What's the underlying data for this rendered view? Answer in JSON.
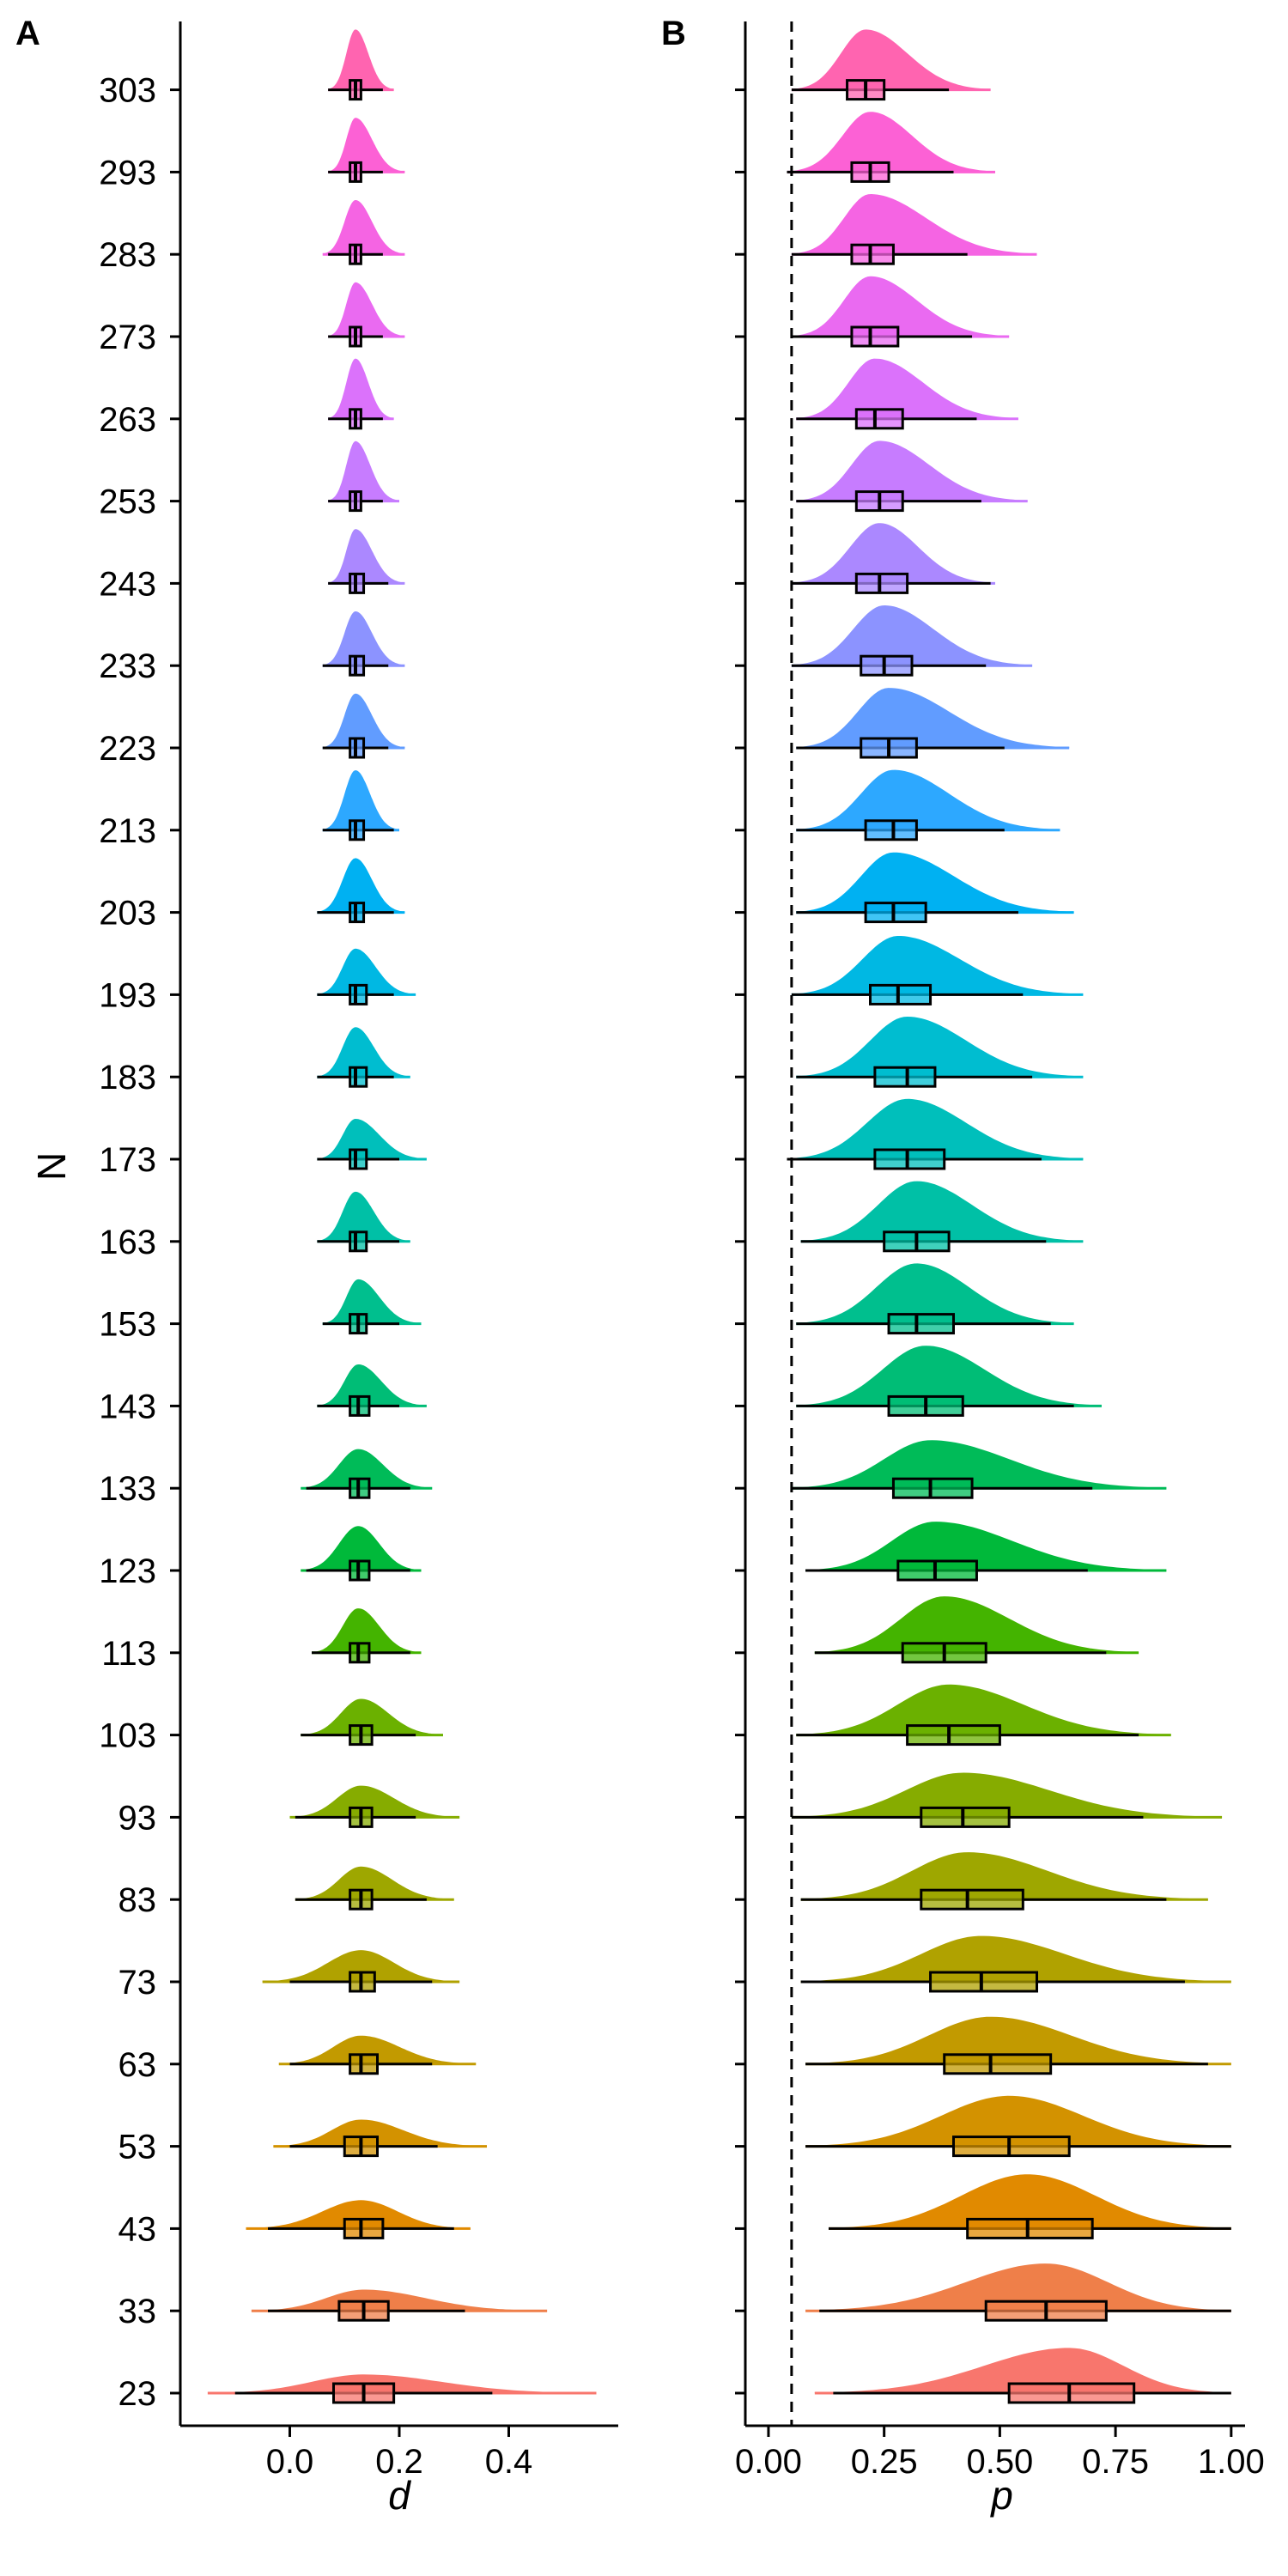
{
  "figure": {
    "y_title": "N",
    "y_ticks": [
      "23",
      "33",
      "43",
      "53",
      "63",
      "73",
      "83",
      "93",
      "103",
      "113",
      "123",
      "133",
      "143",
      "153",
      "163",
      "173",
      "183",
      "193",
      "203",
      "213",
      "223",
      "233",
      "243",
      "253",
      "263",
      "273",
      "283",
      "293",
      "303"
    ]
  },
  "chart_data": [
    {
      "panel": "A",
      "type": "raincloud",
      "xlabel": "d",
      "ylabel": "N",
      "xlim": [
        -0.2,
        0.6
      ],
      "x_ticks": [
        "0.0",
        "0.2",
        "0.4"
      ],
      "reference_line": null,
      "grid": false,
      "legend": "none",
      "series": [
        {
          "n": 23,
          "q1": 0.08,
          "median": 0.135,
          "q3": 0.19,
          "whisker_low": -0.1,
          "whisker_high": 0.37,
          "min": -0.15,
          "max": 0.56,
          "color": "#F8766D"
        },
        {
          "n": 33,
          "q1": 0.09,
          "median": 0.135,
          "q3": 0.18,
          "whisker_low": -0.04,
          "whisker_high": 0.32,
          "min": -0.07,
          "max": 0.47,
          "color": "#EF7F49"
        },
        {
          "n": 43,
          "q1": 0.1,
          "median": 0.13,
          "q3": 0.17,
          "whisker_low": -0.04,
          "whisker_high": 0.3,
          "min": -0.08,
          "max": 0.33,
          "color": "#E18A00"
        },
        {
          "n": 53,
          "q1": 0.1,
          "median": 0.13,
          "q3": 0.16,
          "whisker_low": 0.0,
          "whisker_high": 0.27,
          "min": -0.03,
          "max": 0.36,
          "color": "#D39200"
        },
        {
          "n": 63,
          "q1": 0.11,
          "median": 0.13,
          "q3": 0.16,
          "whisker_low": 0.0,
          "whisker_high": 0.26,
          "min": -0.02,
          "max": 0.34,
          "color": "#C29A00"
        },
        {
          "n": 73,
          "q1": 0.11,
          "median": 0.13,
          "q3": 0.155,
          "whisker_low": 0.0,
          "whisker_high": 0.26,
          "min": -0.05,
          "max": 0.31,
          "color": "#B0A200"
        },
        {
          "n": 83,
          "q1": 0.11,
          "median": 0.13,
          "q3": 0.15,
          "whisker_low": 0.01,
          "whisker_high": 0.25,
          "min": 0.01,
          "max": 0.3,
          "color": "#9EA700"
        },
        {
          "n": 93,
          "q1": 0.11,
          "median": 0.13,
          "q3": 0.15,
          "whisker_low": 0.01,
          "whisker_high": 0.23,
          "min": 0.0,
          "max": 0.31,
          "color": "#86AC00"
        },
        {
          "n": 103,
          "q1": 0.11,
          "median": 0.13,
          "q3": 0.15,
          "whisker_low": 0.02,
          "whisker_high": 0.23,
          "min": 0.02,
          "max": 0.28,
          "color": "#6BB100"
        },
        {
          "n": 113,
          "q1": 0.11,
          "median": 0.125,
          "q3": 0.145,
          "whisker_low": 0.04,
          "whisker_high": 0.22,
          "min": 0.04,
          "max": 0.24,
          "color": "#44B400"
        },
        {
          "n": 123,
          "q1": 0.11,
          "median": 0.125,
          "q3": 0.145,
          "whisker_low": 0.03,
          "whisker_high": 0.22,
          "min": 0.02,
          "max": 0.24,
          "color": "#00B93A"
        },
        {
          "n": 133,
          "q1": 0.11,
          "median": 0.125,
          "q3": 0.145,
          "whisker_low": 0.03,
          "whisker_high": 0.22,
          "min": 0.02,
          "max": 0.26,
          "color": "#00BB58"
        },
        {
          "n": 143,
          "q1": 0.11,
          "median": 0.125,
          "q3": 0.145,
          "whisker_low": 0.05,
          "whisker_high": 0.2,
          "min": 0.05,
          "max": 0.25,
          "color": "#00BD76"
        },
        {
          "n": 153,
          "q1": 0.11,
          "median": 0.125,
          "q3": 0.14,
          "whisker_low": 0.06,
          "whisker_high": 0.2,
          "min": 0.06,
          "max": 0.24,
          "color": "#00BF8E"
        },
        {
          "n": 163,
          "q1": 0.11,
          "median": 0.12,
          "q3": 0.14,
          "whisker_low": 0.05,
          "whisker_high": 0.2,
          "min": 0.05,
          "max": 0.22,
          "color": "#00C0A6"
        },
        {
          "n": 173,
          "q1": 0.11,
          "median": 0.12,
          "q3": 0.14,
          "whisker_low": 0.05,
          "whisker_high": 0.2,
          "min": 0.05,
          "max": 0.25,
          "color": "#00BFBB"
        },
        {
          "n": 183,
          "q1": 0.11,
          "median": 0.12,
          "q3": 0.14,
          "whisker_low": 0.05,
          "whisker_high": 0.19,
          "min": 0.05,
          "max": 0.22,
          "color": "#00BDD0"
        },
        {
          "n": 193,
          "q1": 0.11,
          "median": 0.12,
          "q3": 0.14,
          "whisker_low": 0.05,
          "whisker_high": 0.19,
          "min": 0.05,
          "max": 0.23,
          "color": "#00B8E3"
        },
        {
          "n": 203,
          "q1": 0.11,
          "median": 0.12,
          "q3": 0.135,
          "whisker_low": 0.05,
          "whisker_high": 0.19,
          "min": 0.05,
          "max": 0.21,
          "color": "#00B1F2"
        },
        {
          "n": 213,
          "q1": 0.11,
          "median": 0.12,
          "q3": 0.135,
          "whisker_low": 0.06,
          "whisker_high": 0.19,
          "min": 0.06,
          "max": 0.2,
          "color": "#2DA8FF"
        },
        {
          "n": 223,
          "q1": 0.11,
          "median": 0.12,
          "q3": 0.135,
          "whisker_low": 0.06,
          "whisker_high": 0.18,
          "min": 0.06,
          "max": 0.21,
          "color": "#619CFF"
        },
        {
          "n": 233,
          "q1": 0.11,
          "median": 0.12,
          "q3": 0.135,
          "whisker_low": 0.06,
          "whisker_high": 0.18,
          "min": 0.06,
          "max": 0.21,
          "color": "#8C93FF"
        },
        {
          "n": 243,
          "q1": 0.11,
          "median": 0.12,
          "q3": 0.135,
          "whisker_low": 0.07,
          "whisker_high": 0.18,
          "min": 0.07,
          "max": 0.21,
          "color": "#AB88FF"
        },
        {
          "n": 253,
          "q1": 0.11,
          "median": 0.12,
          "q3": 0.13,
          "whisker_low": 0.07,
          "whisker_high": 0.17,
          "min": 0.07,
          "max": 0.2,
          "color": "#C77CFF"
        },
        {
          "n": 263,
          "q1": 0.11,
          "median": 0.12,
          "q3": 0.13,
          "whisker_low": 0.07,
          "whisker_high": 0.17,
          "min": 0.07,
          "max": 0.19,
          "color": "#DB72FB"
        },
        {
          "n": 273,
          "q1": 0.11,
          "median": 0.12,
          "q3": 0.13,
          "whisker_low": 0.07,
          "whisker_high": 0.17,
          "min": 0.07,
          "max": 0.21,
          "color": "#EA6AF1"
        },
        {
          "n": 283,
          "q1": 0.11,
          "median": 0.12,
          "q3": 0.13,
          "whisker_low": 0.07,
          "whisker_high": 0.17,
          "min": 0.06,
          "max": 0.21,
          "color": "#F564E3"
        },
        {
          "n": 293,
          "q1": 0.11,
          "median": 0.12,
          "q3": 0.13,
          "whisker_low": 0.07,
          "whisker_high": 0.17,
          "min": 0.07,
          "max": 0.21,
          "color": "#FC61D5"
        },
        {
          "n": 303,
          "q1": 0.11,
          "median": 0.12,
          "q3": 0.13,
          "whisker_low": 0.07,
          "whisker_high": 0.17,
          "min": 0.07,
          "max": 0.19,
          "color": "#FF64B0"
        }
      ]
    },
    {
      "panel": "B",
      "type": "raincloud",
      "xlabel": "p",
      "ylabel": "N",
      "xlim": [
        -0.05,
        1.03
      ],
      "x_ticks": [
        "0.00",
        "0.25",
        "0.50",
        "0.75",
        "1.00"
      ],
      "reference_line": 0.05,
      "grid": false,
      "legend": "none",
      "series": [
        {
          "n": 23,
          "q1": 0.52,
          "median": 0.65,
          "q3": 0.79,
          "whisker_low": 0.14,
          "whisker_high": 1.0,
          "min": 0.1,
          "max": 1.0,
          "color": "#F8766D"
        },
        {
          "n": 33,
          "q1": 0.47,
          "median": 0.6,
          "q3": 0.73,
          "whisker_low": 0.11,
          "whisker_high": 1.0,
          "min": 0.08,
          "max": 1.0,
          "color": "#EF7F49"
        },
        {
          "n": 43,
          "q1": 0.43,
          "median": 0.56,
          "q3": 0.7,
          "whisker_low": 0.13,
          "whisker_high": 1.0,
          "min": 0.13,
          "max": 1.0,
          "color": "#E18A00"
        },
        {
          "n": 53,
          "q1": 0.4,
          "median": 0.52,
          "q3": 0.65,
          "whisker_low": 0.08,
          "whisker_high": 1.0,
          "min": 0.08,
          "max": 1.0,
          "color": "#D39200"
        },
        {
          "n": 63,
          "q1": 0.38,
          "median": 0.48,
          "q3": 0.61,
          "whisker_low": 0.08,
          "whisker_high": 0.95,
          "min": 0.08,
          "max": 1.0,
          "color": "#C29A00"
        },
        {
          "n": 73,
          "q1": 0.35,
          "median": 0.46,
          "q3": 0.58,
          "whisker_low": 0.07,
          "whisker_high": 0.9,
          "min": 0.07,
          "max": 1.0,
          "color": "#B0A200"
        },
        {
          "n": 83,
          "q1": 0.33,
          "median": 0.43,
          "q3": 0.55,
          "whisker_low": 0.07,
          "whisker_high": 0.86,
          "min": 0.07,
          "max": 0.95,
          "color": "#9EA700"
        },
        {
          "n": 93,
          "q1": 0.33,
          "median": 0.42,
          "q3": 0.52,
          "whisker_low": 0.05,
          "whisker_high": 0.81,
          "min": 0.05,
          "max": 0.98,
          "color": "#86AC00"
        },
        {
          "n": 103,
          "q1": 0.3,
          "median": 0.39,
          "q3": 0.5,
          "whisker_low": 0.06,
          "whisker_high": 0.8,
          "min": 0.06,
          "max": 0.87,
          "color": "#6BB100"
        },
        {
          "n": 113,
          "q1": 0.29,
          "median": 0.38,
          "q3": 0.47,
          "whisker_low": 0.1,
          "whisker_high": 0.73,
          "min": 0.1,
          "max": 0.8,
          "color": "#44B400"
        },
        {
          "n": 123,
          "q1": 0.28,
          "median": 0.36,
          "q3": 0.45,
          "whisker_low": 0.08,
          "whisker_high": 0.69,
          "min": 0.08,
          "max": 0.86,
          "color": "#00B93A"
        },
        {
          "n": 133,
          "q1": 0.27,
          "median": 0.35,
          "q3": 0.44,
          "whisker_low": 0.05,
          "whisker_high": 0.7,
          "min": 0.05,
          "max": 0.86,
          "color": "#00BB58"
        },
        {
          "n": 143,
          "q1": 0.26,
          "median": 0.34,
          "q3": 0.42,
          "whisker_low": 0.06,
          "whisker_high": 0.66,
          "min": 0.06,
          "max": 0.72,
          "color": "#00BD76"
        },
        {
          "n": 153,
          "q1": 0.26,
          "median": 0.32,
          "q3": 0.4,
          "whisker_low": 0.06,
          "whisker_high": 0.61,
          "min": 0.06,
          "max": 0.66,
          "color": "#00BF8E"
        },
        {
          "n": 163,
          "q1": 0.25,
          "median": 0.32,
          "q3": 0.39,
          "whisker_low": 0.07,
          "whisker_high": 0.6,
          "min": 0.07,
          "max": 0.68,
          "color": "#00C0A6"
        },
        {
          "n": 173,
          "q1": 0.23,
          "median": 0.3,
          "q3": 0.38,
          "whisker_low": 0.04,
          "whisker_high": 0.59,
          "min": 0.04,
          "max": 0.68,
          "color": "#00BFBB"
        },
        {
          "n": 183,
          "q1": 0.23,
          "median": 0.3,
          "q3": 0.36,
          "whisker_low": 0.06,
          "whisker_high": 0.57,
          "min": 0.06,
          "max": 0.68,
          "color": "#00BDD0"
        },
        {
          "n": 193,
          "q1": 0.22,
          "median": 0.28,
          "q3": 0.35,
          "whisker_low": 0.05,
          "whisker_high": 0.55,
          "min": 0.05,
          "max": 0.68,
          "color": "#00B8E3"
        },
        {
          "n": 203,
          "q1": 0.21,
          "median": 0.27,
          "q3": 0.34,
          "whisker_low": 0.06,
          "whisker_high": 0.54,
          "min": 0.06,
          "max": 0.66,
          "color": "#00B1F2"
        },
        {
          "n": 213,
          "q1": 0.21,
          "median": 0.27,
          "q3": 0.32,
          "whisker_low": 0.06,
          "whisker_high": 0.51,
          "min": 0.06,
          "max": 0.63,
          "color": "#2DA8FF"
        },
        {
          "n": 223,
          "q1": 0.2,
          "median": 0.26,
          "q3": 0.32,
          "whisker_low": 0.06,
          "whisker_high": 0.51,
          "min": 0.06,
          "max": 0.65,
          "color": "#619CFF"
        },
        {
          "n": 233,
          "q1": 0.2,
          "median": 0.25,
          "q3": 0.31,
          "whisker_low": 0.05,
          "whisker_high": 0.47,
          "min": 0.05,
          "max": 0.57,
          "color": "#8C93FF"
        },
        {
          "n": 243,
          "q1": 0.19,
          "median": 0.24,
          "q3": 0.3,
          "whisker_low": 0.05,
          "whisker_high": 0.48,
          "min": 0.05,
          "max": 0.49,
          "color": "#AB88FF"
        },
        {
          "n": 253,
          "q1": 0.19,
          "median": 0.24,
          "q3": 0.29,
          "whisker_low": 0.06,
          "whisker_high": 0.46,
          "min": 0.06,
          "max": 0.56,
          "color": "#C77CFF"
        },
        {
          "n": 263,
          "q1": 0.19,
          "median": 0.23,
          "q3": 0.29,
          "whisker_low": 0.06,
          "whisker_high": 0.45,
          "min": 0.06,
          "max": 0.54,
          "color": "#DB72FB"
        },
        {
          "n": 273,
          "q1": 0.18,
          "median": 0.22,
          "q3": 0.28,
          "whisker_low": 0.05,
          "whisker_high": 0.44,
          "min": 0.05,
          "max": 0.52,
          "color": "#EA6AF1"
        },
        {
          "n": 283,
          "q1": 0.18,
          "median": 0.22,
          "q3": 0.27,
          "whisker_low": 0.05,
          "whisker_high": 0.43,
          "min": 0.05,
          "max": 0.58,
          "color": "#F564E3"
        },
        {
          "n": 293,
          "q1": 0.18,
          "median": 0.22,
          "q3": 0.26,
          "whisker_low": 0.04,
          "whisker_high": 0.4,
          "min": 0.04,
          "max": 0.49,
          "color": "#FC61D5"
        },
        {
          "n": 303,
          "q1": 0.17,
          "median": 0.21,
          "q3": 0.25,
          "whisker_low": 0.05,
          "whisker_high": 0.39,
          "min": 0.05,
          "max": 0.48,
          "color": "#FF64B0"
        }
      ]
    }
  ]
}
